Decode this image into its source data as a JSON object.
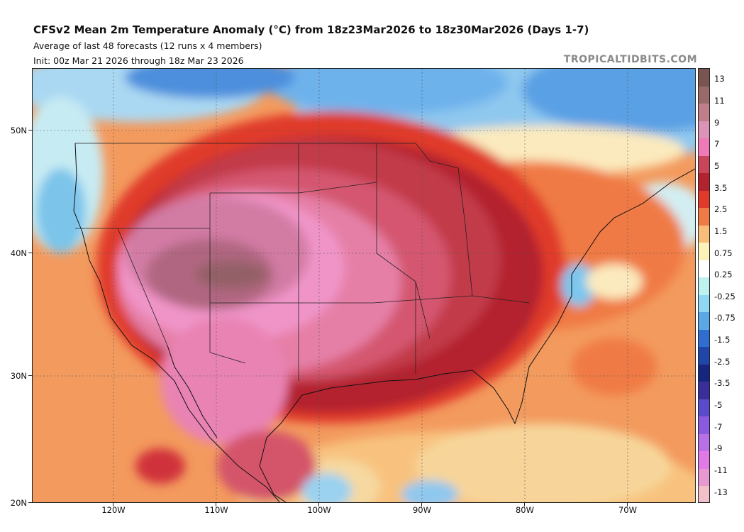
{
  "header": {
    "title": "CFSv2 Mean 2m Temperature Anomaly (°C) from 18z23Mar2026 to 18z30Mar2026 (Days 1-7)",
    "subtitle1": "Average of last 48 forecasts (12 runs x 4 members)",
    "subtitle2": "Init: 00z Mar 21 2026 through 18z Mar 23 2026",
    "watermark": "TROPICALTIDBITS.COM"
  },
  "map": {
    "lat_range": [
      20,
      55.5
    ],
    "lon_range": [
      -128,
      -63.5
    ],
    "lat_labels": [
      {
        "lat": 50,
        "text": "50N"
      },
      {
        "lat": 40,
        "text": "40N"
      },
      {
        "lat": 30,
        "text": "30N"
      },
      {
        "lat": 20,
        "text": "20N"
      }
    ],
    "lon_labels": [
      {
        "lon": -120,
        "text": "120W"
      },
      {
        "lon": -110,
        "text": "110W"
      },
      {
        "lon": -100,
        "text": "100W"
      },
      {
        "lon": -90,
        "text": "90W"
      },
      {
        "lon": -80,
        "text": "80W"
      },
      {
        "lon": -70,
        "text": "70W"
      }
    ]
  },
  "colorbar": {
    "labels": [
      "13",
      "11",
      "9",
      "7",
      "5",
      "3.5",
      "2.5",
      "1.5",
      "0.75",
      "0.25",
      "-0.25",
      "-0.75",
      "-1.5",
      "-2.5",
      "-3.5",
      "-5",
      "-7",
      "-9",
      "-11",
      "-13"
    ],
    "colors": [
      "#7a5550",
      "#9a6a68",
      "#c07d8a",
      "#db93b6",
      "#f07ab8",
      "#c9465a",
      "#b3222f",
      "#e03a2b",
      "#f07a45",
      "#f8bd78",
      "#fbf2b8",
      "#ffffff",
      "#bdf2ef",
      "#8fd8f3",
      "#5aa8e8",
      "#2f6ed0",
      "#1f46a8",
      "#16267e",
      "#3a2f9a",
      "#5a4acc",
      "#8a5ae0",
      "#b870e8",
      "#e07ae6",
      "#e898d0",
      "#f2c0c8"
    ]
  }
}
